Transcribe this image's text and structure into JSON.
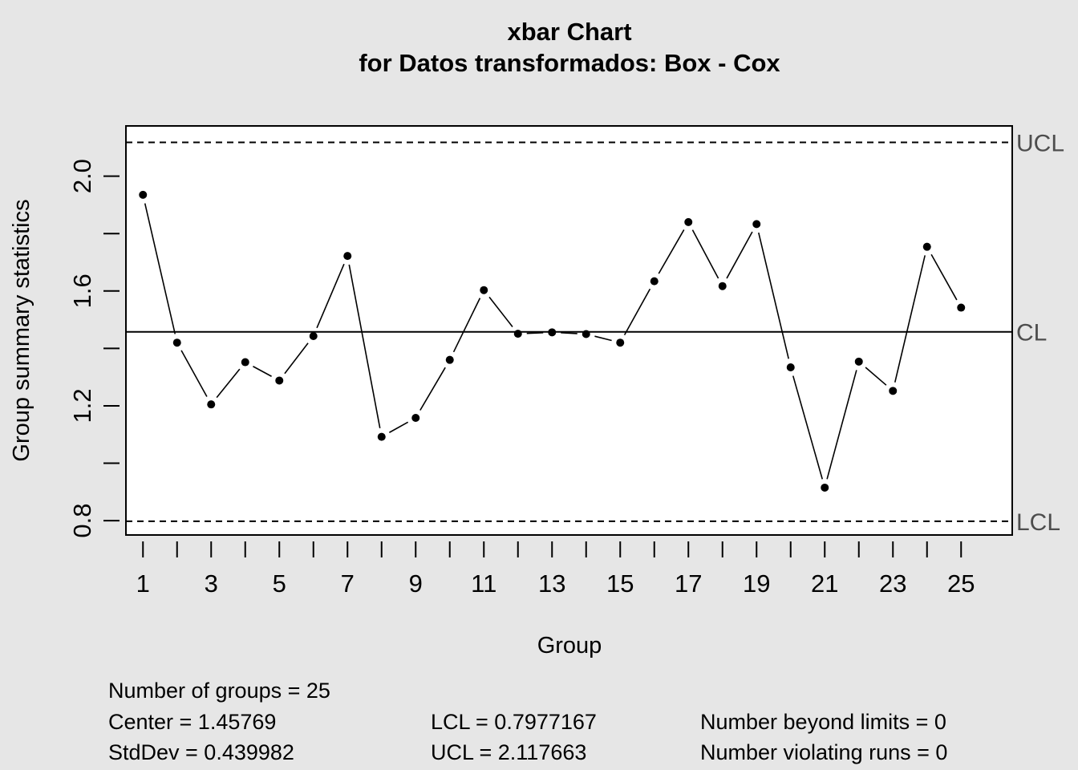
{
  "chart_data": {
    "type": "line",
    "title": "xbar Chart",
    "subtitle": "for Datos transformados: Box - Cox",
    "xlabel": "Group",
    "ylabel": "Group summary statistics",
    "x": [
      1,
      2,
      3,
      4,
      5,
      6,
      7,
      8,
      9,
      10,
      11,
      12,
      13,
      14,
      15,
      16,
      17,
      18,
      19,
      20,
      21,
      22,
      23,
      24,
      25
    ],
    "values": [
      1.935,
      1.42,
      1.205,
      1.352,
      1.288,
      1.443,
      1.722,
      1.092,
      1.158,
      1.36,
      1.603,
      1.451,
      1.456,
      1.45,
      1.42,
      1.634,
      1.84,
      1.617,
      1.833,
      1.334,
      0.915,
      1.354,
      1.252,
      1.754,
      1.542
    ],
    "x_ticks": [
      "1",
      "3",
      "5",
      "7",
      "9",
      "11",
      "13",
      "15",
      "17",
      "19",
      "21",
      "23",
      "25"
    ],
    "y_ticks": [
      "0.8",
      "1.2",
      "1.6",
      "2.0"
    ],
    "ylim": [
      0.75,
      2.175
    ],
    "xlim": [
      0.5,
      26.5
    ],
    "center": 1.45769,
    "lcl": 0.7977167,
    "ucl": 2.117663,
    "limit_labels": {
      "ucl": "UCL",
      "cl": "CL",
      "lcl": "LCL"
    },
    "grid": false,
    "legend": "none"
  },
  "stats": {
    "groups": "Number of groups = 25",
    "center": "Center = 1.45769",
    "stddev": "StdDev = 0.439982",
    "lcl": "LCL = 0.7977167",
    "ucl": "UCL = 2.117663",
    "beyond": "Number beyond limits = 0",
    "violating": "Number violating runs = 0"
  }
}
